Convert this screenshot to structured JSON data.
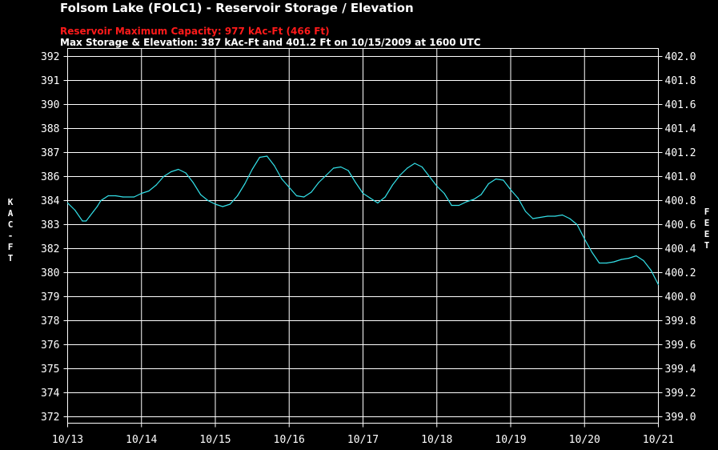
{
  "title": "Folsom Lake (FOLC1) - Reservoir Storage / Elevation",
  "subtitle_capacity": "Reservoir Maximum Capacity: 977 kAc-Ft (466 Ft)",
  "subtitle_max": "Max Storage & Elevation: 387 kAc-Ft and 401.2 Ft on 10/15/2009 at 1600 UTC",
  "colors": {
    "background": "#000000",
    "grid": "#ffffff",
    "series": "#33e0e8",
    "capacity_text": "#ff1a1a"
  },
  "chart_data": {
    "type": "line",
    "title": "Folsom Lake (FOLC1) - Reservoir Storage / Elevation",
    "ylabel_left": "KAC-FT",
    "ylabel_right": "FEET",
    "xlim_days": [
      0,
      8
    ],
    "x_ticks": [
      "10/13",
      "10/14",
      "10/15",
      "10/16",
      "10/17",
      "10/18",
      "10/19",
      "10/20",
      "10/21"
    ],
    "y_left_ticks": [
      "392",
      "391",
      "390",
      "388",
      "387",
      "386",
      "384",
      "383",
      "382",
      "380",
      "379",
      "378",
      "376",
      "375",
      "374",
      "372"
    ],
    "y_right_ticks": [
      "402.0",
      "401.8",
      "401.6",
      "401.4",
      "401.2",
      "401.0",
      "400.8",
      "400.6",
      "400.4",
      "400.2",
      "400.0",
      "399.8",
      "399.6",
      "399.4",
      "399.2",
      "399.0"
    ],
    "ylim_right": [
      399.0,
      402.0
    ],
    "grid": true,
    "series": [
      {
        "name": "",
        "unit": "FEET",
        "x": [
          0,
          0.1,
          0.2,
          0.25,
          0.3,
          0.35,
          0.4,
          0.45,
          0.55,
          0.65,
          0.75,
          0.9,
          1.0,
          1.1,
          1.2,
          1.3,
          1.4,
          1.5,
          1.6,
          1.7,
          1.8,
          1.9,
          2.0,
          2.1,
          2.2,
          2.3,
          2.4,
          2.5,
          2.6,
          2.7,
          2.8,
          2.9,
          3.0,
          3.1,
          3.2,
          3.3,
          3.4,
          3.5,
          3.6,
          3.7,
          3.8,
          3.9,
          4.0,
          4.1,
          4.2,
          4.3,
          4.4,
          4.5,
          4.6,
          4.7,
          4.8,
          4.9,
          5.0,
          5.1,
          5.2,
          5.3,
          5.4,
          5.5,
          5.6,
          5.7,
          5.8,
          5.9,
          6.0,
          6.1,
          6.2,
          6.3,
          6.4,
          6.5,
          6.6,
          6.7,
          6.8,
          6.9,
          7.0,
          7.1,
          7.2,
          7.3,
          7.4,
          7.5,
          7.6,
          7.7,
          7.8,
          7.9,
          8.0
        ],
        "y": [
          400.78,
          400.72,
          400.63,
          400.63,
          400.67,
          400.71,
          400.75,
          400.8,
          400.84,
          400.84,
          400.83,
          400.83,
          400.86,
          400.88,
          400.93,
          401.0,
          401.04,
          401.06,
          401.03,
          400.95,
          400.85,
          400.8,
          400.77,
          400.75,
          400.77,
          400.84,
          400.94,
          401.06,
          401.16,
          401.17,
          401.09,
          400.98,
          400.91,
          400.84,
          400.83,
          400.87,
          400.95,
          401.01,
          401.07,
          401.08,
          401.05,
          400.95,
          400.86,
          400.82,
          400.78,
          400.83,
          400.93,
          401.01,
          401.07,
          401.11,
          401.08,
          401.0,
          400.92,
          400.86,
          400.76,
          400.76,
          400.79,
          400.81,
          400.85,
          400.94,
          400.98,
          400.97,
          400.89,
          400.82,
          400.71,
          400.65,
          400.66,
          400.67,
          400.67,
          400.68,
          400.65,
          400.6,
          400.48,
          400.37,
          400.28,
          400.28,
          400.29,
          400.31,
          400.32,
          400.34,
          400.3,
          400.22,
          400.1
        ]
      }
    ]
  }
}
